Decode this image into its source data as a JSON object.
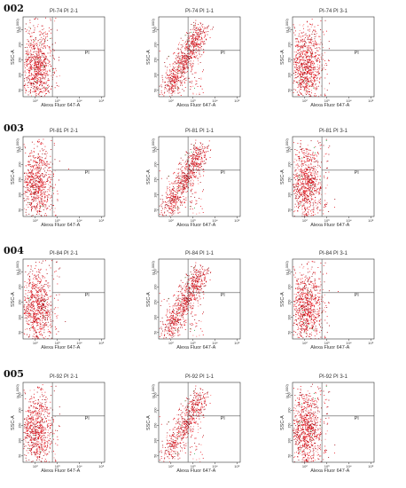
{
  "row_labels": [
    "002",
    "003",
    "004",
    "005"
  ],
  "chart_data": [
    {
      "type": "scatter",
      "sample": "002",
      "title": "PI-74 PI 2-1",
      "gate_label": "PI",
      "xlabel": "Alexa Fluor 647-A",
      "ylabel": "SSC-A",
      "yscale": "(x 1,000)",
      "xticks": [
        "10²",
        "10³",
        "10⁴",
        "10⁵"
      ],
      "yticks": [
        "50",
        "100",
        "150",
        "200",
        "250"
      ],
      "pattern": "blob",
      "density": 0.95
    },
    {
      "type": "scatter",
      "sample": "002",
      "title": "PI-74 PI 1-1",
      "gate_label": "PI",
      "xlabel": "Alexa Fluor 647-A",
      "ylabel": "SSC-A",
      "yscale": "(x 1,000)",
      "xticks": [
        "10²",
        "10³",
        "10⁴",
        "10⁵"
      ],
      "yticks": [
        "50",
        "100",
        "150",
        "200",
        "250"
      ],
      "pattern": "diagonal",
      "density": 1.0
    },
    {
      "type": "scatter",
      "sample": "002",
      "title": "PI-74 PI 3-1",
      "gate_label": "PI",
      "xlabel": "Alexa Fluor 647-A",
      "ylabel": "SSC-A",
      "yscale": "(x 1,000)",
      "xticks": [
        "10²",
        "10³",
        "10⁴",
        "10⁵"
      ],
      "yticks": [
        "50",
        "100",
        "150",
        "200",
        "250"
      ],
      "pattern": "blob",
      "density": 1.0
    },
    {
      "type": "scatter",
      "sample": "003",
      "title": "PI-81 PI 2-1",
      "gate_label": "PI",
      "xlabel": "Alexa Fluor 647-A",
      "ylabel": "SSC-A",
      "yscale": "(x 1,000)",
      "xticks": [
        "10²",
        "10³",
        "10⁴",
        "10⁵"
      ],
      "yticks": [
        "50",
        "100",
        "150",
        "200",
        "250"
      ],
      "pattern": "blob",
      "density": 0.9
    },
    {
      "type": "scatter",
      "sample": "003",
      "title": "PI-81 PI 1-1",
      "gate_label": "PI",
      "xlabel": "Alexa Fluor 647-A",
      "ylabel": "SSC-A",
      "yscale": "(x 1,000)",
      "xticks": [
        "10²",
        "10³",
        "10⁴",
        "10⁵"
      ],
      "yticks": [
        "50",
        "100",
        "150",
        "200",
        "250"
      ],
      "pattern": "diagonal",
      "density": 0.95
    },
    {
      "type": "scatter",
      "sample": "003",
      "title": "PI-81 PI 3-1",
      "gate_label": "PI",
      "xlabel": "Alexa Fluor 647-A",
      "ylabel": "SSC-A",
      "yscale": "(x 1,000)",
      "xticks": [
        "10²",
        "10³",
        "10⁴",
        "10⁵"
      ],
      "yticks": [
        "50",
        "100",
        "150",
        "200",
        "250"
      ],
      "pattern": "blob",
      "density": 0.95
    },
    {
      "type": "scatter",
      "sample": "004",
      "title": "PI-84 PI 2-1",
      "gate_label": "PI",
      "xlabel": "Alexa Fluor 647-A",
      "ylabel": "SSC-A",
      "yscale": "(x 1,000)",
      "xticks": [
        "10²",
        "10³",
        "10⁴",
        "10⁵"
      ],
      "yticks": [
        "50",
        "100",
        "150",
        "200",
        "250"
      ],
      "pattern": "blob",
      "density": 0.9
    },
    {
      "type": "scatter",
      "sample": "004",
      "title": "PI-84 PI 1-1",
      "gate_label": "PI",
      "xlabel": "Alexa Fluor 647-A",
      "ylabel": "SSC-A",
      "yscale": "(x 1,000)",
      "xticks": [
        "10²",
        "10³",
        "10⁴",
        "10⁵"
      ],
      "yticks": [
        "50",
        "100",
        "150",
        "200",
        "250"
      ],
      "pattern": "diagonal",
      "density": 0.95
    },
    {
      "type": "scatter",
      "sample": "004",
      "title": "PI-84 PI 3-1",
      "gate_label": "PI",
      "xlabel": "Alexa Fluor 647-A",
      "ylabel": "SSC-A",
      "yscale": "(x 1,000)",
      "xticks": [
        "10²",
        "10³",
        "10⁴",
        "10⁵"
      ],
      "yticks": [
        "50",
        "100",
        "150",
        "200",
        "250"
      ],
      "pattern": "blob",
      "density": 0.95
    },
    {
      "type": "scatter",
      "sample": "005",
      "title": "PI-92 PI 2-1",
      "gate_label": "PI",
      "xlabel": "Alexa Fluor 647-A",
      "ylabel": "SSC-A",
      "yscale": "(x 1,000)",
      "xticks": [
        "10²",
        "10³",
        "10⁴",
        "10⁵"
      ],
      "yticks": [
        "50",
        "100",
        "150",
        "200",
        "250"
      ],
      "pattern": "blob",
      "density": 0.9
    },
    {
      "type": "scatter",
      "sample": "005",
      "title": "PI-92 PI 1-1",
      "gate_label": "PI",
      "xlabel": "Alexa Fluor 647-A",
      "ylabel": "SSC-A",
      "yscale": "(x 1,000)",
      "xticks": [
        "10²",
        "10³",
        "10⁴",
        "10⁵"
      ],
      "yticks": [
        "50",
        "100",
        "150",
        "200",
        "250"
      ],
      "pattern": "diagonal",
      "density": 0.75
    },
    {
      "type": "scatter",
      "sample": "005",
      "title": "PI-92 PI 3-1",
      "gate_label": "PI",
      "xlabel": "Alexa Fluor 647-A",
      "ylabel": "SSC-A",
      "yscale": "(x 1,000)",
      "xticks": [
        "10²",
        "10³",
        "10⁴",
        "10⁵"
      ],
      "yticks": [
        "50",
        "100",
        "150",
        "200",
        "250"
      ],
      "pattern": "blob",
      "density": 1.0
    }
  ],
  "colors": {
    "dots_primary": "#e8101a",
    "dots_dense": "#a0000a",
    "dots_sparse": "#ff6a6a",
    "dots_highlight": "#2aa84a",
    "axis": "#333333",
    "gate": "#555555"
  }
}
